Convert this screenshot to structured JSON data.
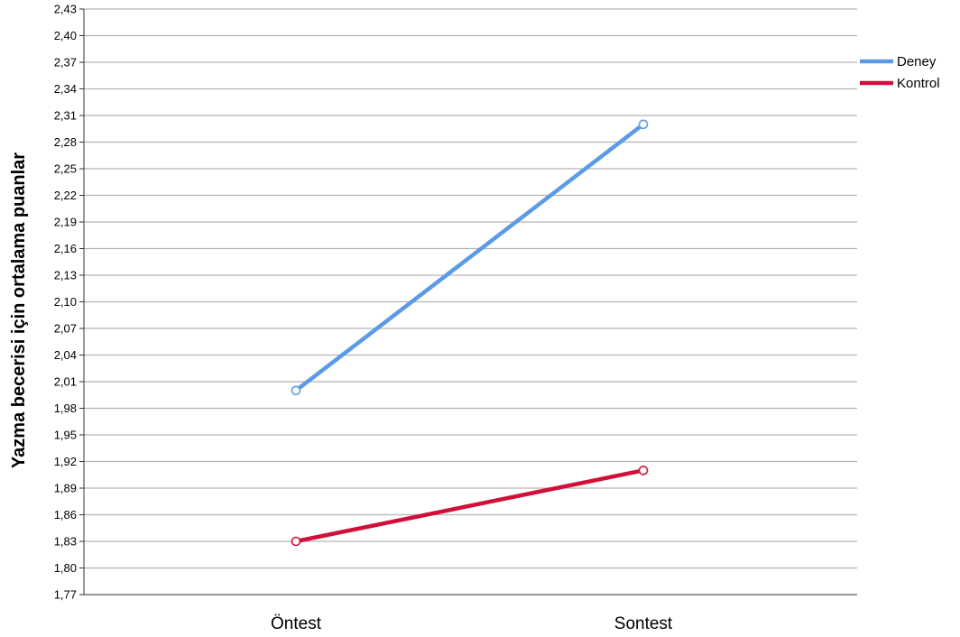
{
  "chart_data": {
    "type": "line",
    "title": "",
    "xlabel": "",
    "ylabel": "Yazma becerisi için ortalama puanlar",
    "categories": [
      "Öntest",
      "Sontest"
    ],
    "ylim": [
      1.77,
      2.43
    ],
    "yticks": [
      "1,77",
      "1,80",
      "1,83",
      "1,86",
      "1,89",
      "1,92",
      "1,95",
      "1,98",
      "2,01",
      "2,04",
      "2,07",
      "2,10",
      "2,13",
      "2,16",
      "2,19",
      "2,22",
      "2,25",
      "2,28",
      "2,31",
      "2,34",
      "2,37",
      "2,40",
      "2,43"
    ],
    "grid": "horizontal",
    "legend_position": "right",
    "series": [
      {
        "name": "Deney",
        "values": [
          2.0,
          2.3
        ],
        "color": "#5b9be6"
      },
      {
        "name": "Kontrol",
        "values": [
          1.83,
          1.91
        ],
        "color": "#d0103a"
      }
    ]
  }
}
